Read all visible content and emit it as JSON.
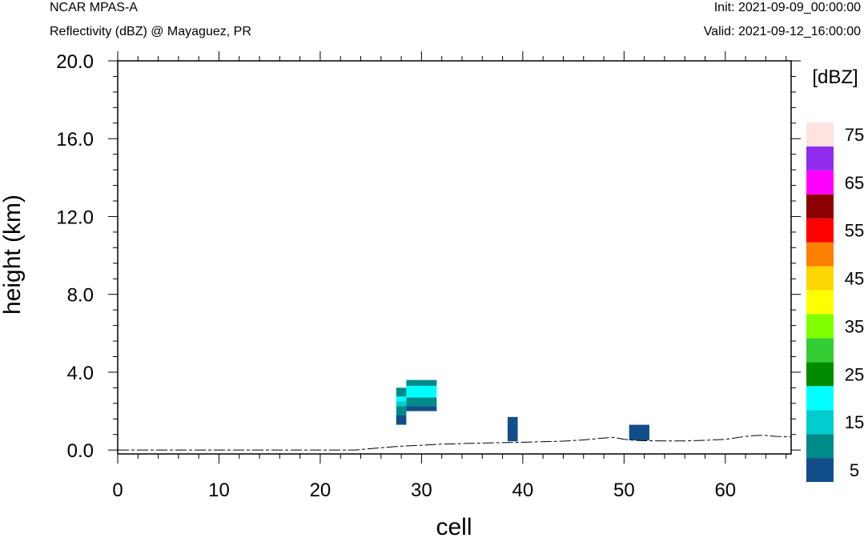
{
  "header": {
    "title": "NCAR MPAS-A",
    "subtitle": "Reflectivity (dBZ) @ Mayaguez, PR",
    "init": "Init: 2021-09-09_00:00:00",
    "valid": "Valid: 2021-09-12_16:00:00"
  },
  "chart_data": {
    "type": "heatmap",
    "title": "Reflectivity (dBZ) @ Mayaguez, PR",
    "xlabel": "cell",
    "ylabel": "height (km)",
    "xlim": [
      0,
      66.5
    ],
    "ylim": [
      -0.2,
      20.0
    ],
    "x_ticks": [
      0,
      10,
      20,
      30,
      40,
      50,
      60
    ],
    "x_tick_labels": [
      "0",
      "10",
      "20",
      "30",
      "40",
      "50",
      "60"
    ],
    "y_ticks": [
      0.0,
      4.0,
      8.0,
      12.0,
      16.0,
      20.0
    ],
    "y_tick_labels": [
      "0.0",
      "4.0",
      "8.0",
      "12.0",
      "16.0",
      "20.0"
    ],
    "colorbar": {
      "title": "[dBZ]",
      "levels": [
        5,
        10,
        15,
        20,
        25,
        30,
        35,
        40,
        45,
        50,
        55,
        60,
        65,
        70,
        75
      ],
      "colors": [
        "#124e8a",
        "#008b8b",
        "#00cdcd",
        "#00ffff",
        "#008b00",
        "#32cd32",
        "#7fff00",
        "#ffff00",
        "#ffd700",
        "#ff7f00",
        "#ff0000",
        "#8b0000",
        "#ff00ff",
        "#912cee",
        "#ffe4e1"
      ],
      "tick_labels": [
        "5",
        "15",
        "25",
        "35",
        "45",
        "55",
        "65",
        "75"
      ]
    },
    "terrain": {
      "x": [
        0,
        10,
        20,
        23.5,
        24.5,
        26,
        28,
        30,
        32,
        34,
        36,
        38,
        40,
        42,
        44,
        46,
        48,
        49,
        50,
        51,
        52,
        54,
        56,
        58,
        60,
        62,
        63,
        64,
        65,
        66.5
      ],
      "height": [
        0.0,
        0.0,
        0.0,
        0.0,
        0.05,
        0.12,
        0.2,
        0.25,
        0.3,
        0.33,
        0.36,
        0.38,
        0.4,
        0.43,
        0.46,
        0.52,
        0.62,
        0.65,
        0.55,
        0.5,
        0.48,
        0.47,
        0.47,
        0.5,
        0.55,
        0.7,
        0.75,
        0.75,
        0.7,
        0.68
      ]
    },
    "cells": [
      {
        "x0": 27.5,
        "x1": 28.5,
        "y0": 1.3,
        "y1": 1.8,
        "dbz": 5
      },
      {
        "x0": 27.5,
        "x1": 28.5,
        "y0": 1.8,
        "y1": 2.25,
        "dbz": 10
      },
      {
        "x0": 27.5,
        "x1": 28.5,
        "y0": 2.25,
        "y1": 2.5,
        "dbz": 15
      },
      {
        "x0": 27.5,
        "x1": 28.5,
        "y0": 2.5,
        "y1": 2.75,
        "dbz": 20
      },
      {
        "x0": 27.5,
        "x1": 28.5,
        "y0": 2.75,
        "y1": 3.2,
        "dbz": 10
      },
      {
        "x0": 28.5,
        "x1": 31.5,
        "y0": 2.0,
        "y1": 2.25,
        "dbz": 5
      },
      {
        "x0": 28.5,
        "x1": 31.5,
        "y0": 2.25,
        "y1": 2.7,
        "dbz": 10
      },
      {
        "x0": 28.5,
        "x1": 31.5,
        "y0": 2.7,
        "y1": 3.3,
        "dbz": 20
      },
      {
        "x0": 28.5,
        "x1": 31.5,
        "y0": 3.3,
        "y1": 3.6,
        "dbz": 10
      },
      {
        "x0": 38.5,
        "x1": 39.5,
        "y0": 0.45,
        "y1": 1.7,
        "dbz": 5
      },
      {
        "x0": 50.5,
        "x1": 52.5,
        "y0": 0.5,
        "y1": 1.3,
        "dbz": 5
      }
    ]
  }
}
